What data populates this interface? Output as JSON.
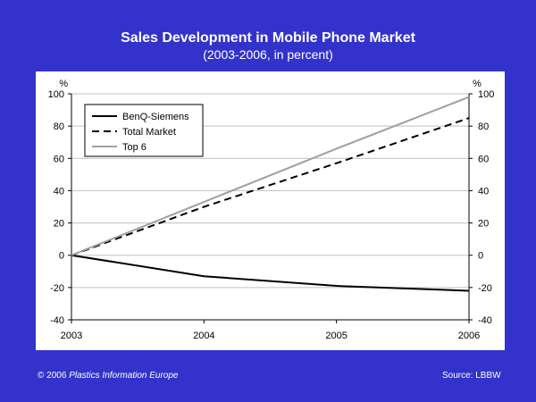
{
  "header": {
    "title": "Sales Development in Mobile Phone Market",
    "subtitle": "(2003-2006, in percent)"
  },
  "footer": {
    "copyright": "© 2006",
    "publisher": "Plastics Information Europe",
    "source": "Source: LBBW"
  },
  "colors": {
    "background": "#3333cc",
    "panel": "#ffffff",
    "gridline": "#c0c0c0",
    "benq": "#000000",
    "total": "#000000",
    "top6": "#a0a0a0"
  },
  "chart_data": {
    "type": "line",
    "title": "Sales Development in Mobile Phone Market",
    "subtitle": "(2003-2006, in percent)",
    "x": [
      "2003",
      "2004",
      "2005",
      "2006"
    ],
    "ylabel_left": "%",
    "ylabel_right": "%",
    "ylim": [
      -40,
      100
    ],
    "yticks": [
      -40,
      -20,
      0,
      20,
      40,
      60,
      80,
      100
    ],
    "grid": true,
    "legend_position": "top-left",
    "series": [
      {
        "name": "BenQ-Siemens",
        "values": [
          0,
          -13,
          -19,
          -22
        ],
        "style": "solid",
        "color": "#000000"
      },
      {
        "name": "Total Market",
        "values": [
          0,
          30,
          57,
          85
        ],
        "style": "dashed",
        "color": "#000000"
      },
      {
        "name": "Top 6",
        "values": [
          0,
          33,
          66,
          98
        ],
        "style": "solid",
        "color": "#a0a0a0"
      }
    ]
  }
}
